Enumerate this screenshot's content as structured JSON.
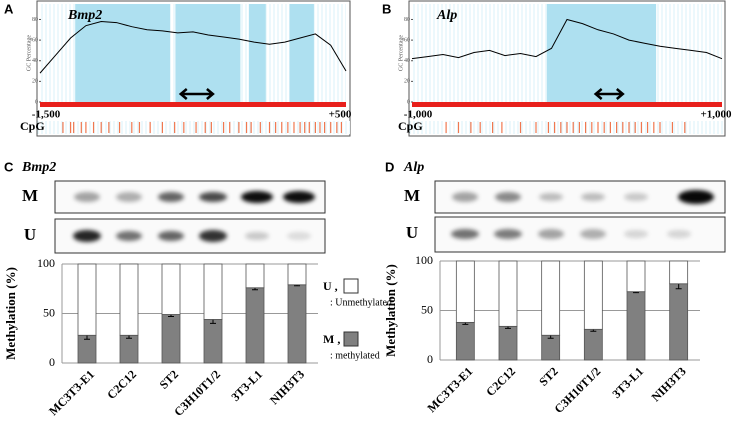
{
  "chart_data": [
    {
      "type": "line",
      "panel": "A",
      "title": "Bmp2",
      "y_label": "GC Percentage",
      "cpg_label": "CpG",
      "x": [
        -1500,
        -1400,
        -1300,
        -1200,
        -1100,
        -1000,
        -900,
        -800,
        -700,
        -600,
        -500,
        -400,
        -300,
        -200,
        -100,
        0,
        100,
        200,
        300,
        400,
        500
      ],
      "series": [
        {
          "color": "#000000",
          "values": [
            28,
            45,
            62,
            74,
            78,
            77,
            73,
            70,
            69,
            67,
            68,
            65,
            63,
            61,
            58,
            56,
            58,
            62,
            66,
            55,
            30
          ]
        }
      ],
      "xlim": [
        -1500,
        500
      ],
      "xticks": [
        {
          "value": -1500,
          "label": "-1,500"
        },
        {
          "value": 500,
          "label": "+500"
        }
      ],
      "ylim": [
        0,
        95
      ],
      "yticks": [
        0,
        20,
        40,
        60,
        80
      ],
      "islands": [
        [
          -1270,
          -650
        ],
        [
          -615,
          -190
        ],
        [
          -135,
          -25
        ],
        [
          130,
          290
        ]
      ],
      "island_color": "#aee0f0",
      "amplicon": [
        -580,
        -370
      ],
      "bar_color": "#e8201c",
      "cpg_color": "#f07850",
      "cpg_sites": [
        -1350,
        -1300,
        -1280,
        -1230,
        -1200,
        -1150,
        -1100,
        -1050,
        -980,
        -900,
        -850,
        -780,
        -700,
        -620,
        -560,
        -480,
        -420,
        -380,
        -300,
        -260,
        -200,
        -150,
        -120,
        -60,
        0,
        40,
        80,
        120,
        160,
        200,
        230,
        260,
        300,
        330,
        360,
        400,
        440,
        470
      ]
    },
    {
      "type": "line",
      "panel": "B",
      "title": "Alp",
      "y_label": "GC Percentage",
      "cpg_label": "CpG",
      "x": [
        -1000,
        -900,
        -800,
        -700,
        -600,
        -500,
        -400,
        -300,
        -200,
        -100,
        0,
        100,
        200,
        300,
        400,
        500,
        600,
        700,
        800,
        900,
        1000
      ],
      "series": [
        {
          "color": "#000000",
          "values": [
            42,
            44,
            46,
            43,
            48,
            50,
            45,
            47,
            44,
            52,
            80,
            76,
            70,
            66,
            60,
            57,
            54,
            52,
            50,
            48,
            42
          ]
        }
      ],
      "xlim": [
        -1000,
        1000
      ],
      "xticks": [
        {
          "value": -1000,
          "label": "-1,000"
        },
        {
          "value": 1000,
          "label": "+1,000"
        }
      ],
      "ylim": [
        0,
        95
      ],
      "yticks": [
        0,
        20,
        40,
        60,
        80
      ],
      "islands": [
        [
          -130,
          575
        ]
      ],
      "island_color": "#aee0f0",
      "amplicon": [
        185,
        360
      ],
      "bar_color": "#e8201c",
      "cpg_color": "#f07850",
      "cpg_sites": [
        -780,
        -700,
        -620,
        -560,
        -480,
        -420,
        -300,
        -200,
        -120,
        -80,
        -40,
        0,
        40,
        80,
        120,
        160,
        200,
        240,
        280,
        320,
        360,
        400,
        440,
        480,
        520,
        560,
        600,
        680,
        760
      ]
    },
    {
      "type": "bar",
      "panel": "C",
      "title": "Bmp2",
      "gel_rows": [
        "M",
        "U"
      ],
      "y_label": "Methylation (%)",
      "categories": [
        "MC3T3-E1",
        "C2C12",
        "ST2",
        "C3H10T1/2",
        "3T3-L1",
        "NIH3T3"
      ],
      "series": [
        {
          "name": "M ,",
          "legend_text": ": methylated",
          "color": "#808080",
          "values": [
            28,
            28,
            49,
            44,
            76,
            79
          ],
          "errors": [
            4,
            3,
            2,
            4,
            2,
            1
          ]
        },
        {
          "name": "U ,",
          "legend_text": ": Unmethylated",
          "color": "#ffffff",
          "values": [
            72,
            72,
            51,
            56,
            24,
            21
          ]
        }
      ],
      "ylim": [
        0,
        100
      ],
      "yticks": [
        0,
        50,
        100
      ],
      "grid": true
    },
    {
      "type": "bar",
      "panel": "D",
      "title": "Alp",
      "gel_rows": [
        "M",
        "U"
      ],
      "y_label": "Methylation (%)",
      "categories": [
        "MC3T3-E1",
        "C2C12",
        "ST2",
        "C3H10T1/2",
        "3T3-L1",
        "NIH3T3"
      ],
      "series": [
        {
          "color": "#808080",
          "values": [
            38,
            34,
            25,
            31,
            69,
            77
          ],
          "errors": [
            2,
            2,
            3,
            2,
            1,
            5
          ]
        },
        {
          "color": "#ffffff",
          "values": [
            62,
            66,
            75,
            69,
            31,
            23
          ]
        }
      ],
      "ylim": [
        0,
        100
      ],
      "yticks": [
        0,
        50,
        100
      ],
      "grid": true
    }
  ]
}
